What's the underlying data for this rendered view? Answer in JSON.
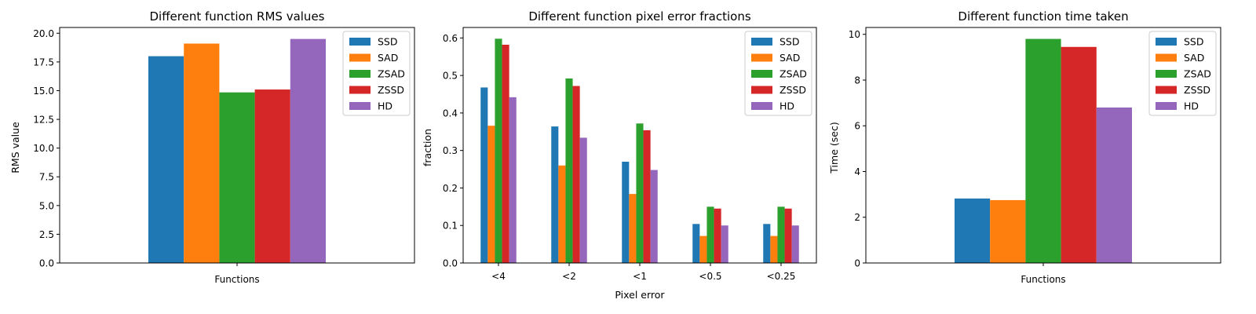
{
  "colors": [
    "#1f77b4",
    "#ff7f0e",
    "#2ca02c",
    "#d62728",
    "#9467bd"
  ],
  "chart_data": [
    {
      "type": "bar",
      "title": "Different function RMS values",
      "xlabel": "",
      "ylabel": "RMS value",
      "categories": [
        "Functions"
      ],
      "series": [
        {
          "name": "SSD",
          "values": [
            18.0
          ]
        },
        {
          "name": "SAD",
          "values": [
            19.1
          ]
        },
        {
          "name": "ZSAD",
          "values": [
            14.85
          ]
        },
        {
          "name": "ZSSD",
          "values": [
            15.1
          ]
        },
        {
          "name": "HD",
          "values": [
            19.5
          ]
        }
      ],
      "ylim": [
        0,
        20.5
      ],
      "yticks": [
        "0.0",
        "2.5",
        "5.0",
        "7.5",
        "10.0",
        "12.5",
        "15.0",
        "17.5",
        "20.0"
      ],
      "legend": "top-right",
      "grid": false
    },
    {
      "type": "bar",
      "title": "Different function pixel error fractions",
      "xlabel": "Pixel error",
      "ylabel": "fraction",
      "categories": [
        "<4",
        "<2",
        "<1",
        "<0.5",
        "<0.25"
      ],
      "series": [
        {
          "name": "SSD",
          "values": [
            0.468,
            0.364,
            0.27,
            0.104,
            0.104
          ]
        },
        {
          "name": "SAD",
          "values": [
            0.366,
            0.26,
            0.184,
            0.072,
            0.072
          ]
        },
        {
          "name": "ZSAD",
          "values": [
            0.598,
            0.492,
            0.372,
            0.15,
            0.15
          ]
        },
        {
          "name": "ZSSD",
          "values": [
            0.582,
            0.472,
            0.354,
            0.145,
            0.145
          ]
        },
        {
          "name": "HD",
          "values": [
            0.442,
            0.334,
            0.248,
            0.1,
            0.1
          ]
        }
      ],
      "ylim": [
        0,
        0.628
      ],
      "yticks": [
        "0.0",
        "0.1",
        "0.2",
        "0.3",
        "0.4",
        "0.5",
        "0.6"
      ],
      "legend": "top-right",
      "grid": false
    },
    {
      "type": "bar",
      "title": "Different function time taken",
      "xlabel": "",
      "ylabel": "Time (sec)",
      "categories": [
        "Functions"
      ],
      "series": [
        {
          "name": "SSD",
          "values": [
            2.82
          ]
        },
        {
          "name": "SAD",
          "values": [
            2.75
          ]
        },
        {
          "name": "ZSAD",
          "values": [
            9.8
          ]
        },
        {
          "name": "ZSSD",
          "values": [
            9.45
          ]
        },
        {
          "name": "HD",
          "values": [
            6.8
          ]
        }
      ],
      "ylim": [
        0,
        10.3
      ],
      "yticks": [
        "0",
        "2",
        "4",
        "6",
        "8",
        "10"
      ],
      "legend": "top-right",
      "grid": false
    }
  ]
}
